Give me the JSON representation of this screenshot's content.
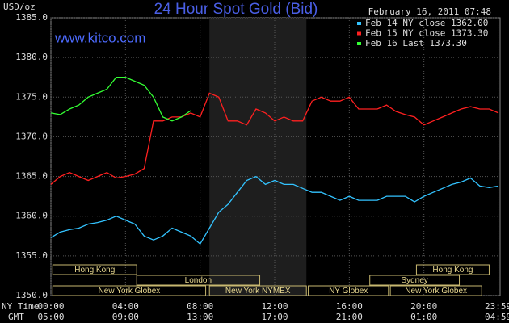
{
  "chart_data": {
    "type": "line",
    "title": "24 Hour Spot Gold (Bid)",
    "subtitle": "www.kitco.com",
    "timestamp": "February 16, 2011 07:48",
    "y_label": "USD/oz",
    "x_row_labels": [
      "NY Time",
      "GMT"
    ],
    "x": [
      0,
      0.5,
      1,
      1.5,
      2,
      2.5,
      3,
      3.5,
      4,
      4.5,
      5,
      5.5,
      6,
      6.5,
      7,
      7.5,
      8,
      8.5,
      9,
      9.5,
      10,
      10.5,
      11,
      11.5,
      12,
      12.5,
      13,
      13.5,
      14,
      14.5,
      15,
      15.5,
      16,
      16.5,
      17,
      17.5,
      18,
      18.5,
      19,
      19.5,
      20,
      20.5,
      21,
      21.5,
      22,
      22.5,
      23,
      23.5,
      24
    ],
    "series": [
      {
        "name": "Feb 14 NY close 1362.00",
        "color": "#33c3ff",
        "values": [
          1357.3,
          1358,
          1358.3,
          1358.5,
          1359,
          1359.2,
          1359.5,
          1360,
          1359.5,
          1359,
          1357.5,
          1357,
          1357.5,
          1358.5,
          1358,
          1357.5,
          1356.5,
          1358.5,
          1360.5,
          1361.5,
          1363,
          1364.5,
          1365,
          1364,
          1364.5,
          1364,
          1364,
          1363.5,
          1363,
          1363,
          1362.5,
          1362,
          1362.5,
          1362,
          1362,
          1362,
          1362.5,
          1362.5,
          1362.5,
          1361.8,
          1362.5,
          1363,
          1363.5,
          1364,
          1364.3,
          1364.8,
          1363.8,
          1363.6,
          1363.8
        ]
      },
      {
        "name": "Feb 15 NY close 1373.30",
        "color": "#ff2020",
        "values": [
          1364,
          1365,
          1365.5,
          1365,
          1364.5,
          1365,
          1365.5,
          1364.8,
          1365,
          1365.3,
          1366,
          1372,
          1372,
          1372.5,
          1372.5,
          1373,
          1372.5,
          1375.5,
          1375,
          1372,
          1372,
          1371.5,
          1373.5,
          1373,
          1372,
          1372.5,
          1372,
          1372,
          1374.5,
          1375,
          1374.5,
          1374.5,
          1375,
          1373.5,
          1373.5,
          1373.5,
          1374,
          1373.2,
          1372.8,
          1372.5,
          1371.5,
          1372,
          1372.5,
          1373,
          1373.5,
          1373.8,
          1373.5,
          1373.5,
          1373
        ]
      },
      {
        "name": "Feb 16 Last 1373.30",
        "color": "#33ff33",
        "values": [
          1373,
          1372.8,
          1373.5,
          1374,
          1375,
          1375.5,
          1376,
          1377.5,
          1377.5,
          1377,
          1376.5,
          1375,
          1372.5,
          1372,
          1372.5,
          1373.3,
          null,
          null,
          null,
          null,
          null,
          null,
          null,
          null,
          null,
          null,
          null,
          null,
          null,
          null,
          null,
          null,
          null,
          null,
          null,
          null,
          null,
          null,
          null,
          null,
          null,
          null,
          null,
          null,
          null,
          null,
          null,
          null,
          null
        ]
      }
    ],
    "xlim": [
      0,
      24
    ],
    "xticks": [
      {
        "value": 0,
        "label": "00:00"
      },
      {
        "value": 4,
        "label": "04:00"
      },
      {
        "value": 8,
        "label": "08:00"
      },
      {
        "value": 12,
        "label": "12:00"
      },
      {
        "value": 16,
        "label": "16:00"
      },
      {
        "value": 20,
        "label": "20:00"
      },
      {
        "value": 23.98,
        "label": "23:59"
      }
    ],
    "gmt_labels": [
      "05:00",
      "09:00",
      "13:00",
      "17:00",
      "21:00",
      "01:00",
      "04:59"
    ],
    "ylim": [
      1350,
      1385
    ],
    "yticks": [
      {
        "value": 1350,
        "label": "1350.0"
      },
      {
        "value": 1355,
        "label": "1355.0"
      },
      {
        "value": 1360,
        "label": "1360.0"
      },
      {
        "value": 1365,
        "label": "1365.0"
      },
      {
        "value": 1370,
        "label": "1370.0"
      },
      {
        "value": 1375,
        "label": "1375.0"
      },
      {
        "value": 1380,
        "label": "1380.0"
      },
      {
        "value": 1385,
        "label": "1385.0"
      }
    ],
    "grid": true,
    "highlight": [
      8.5,
      13.7
    ],
    "sessions": [
      {
        "name": "Hong Kong",
        "row": 0,
        "start": 0.1,
        "end": 4.6
      },
      {
        "name": "Hong Kong",
        "row": 0,
        "start": 19.6,
        "end": 23.5
      },
      {
        "name": "London",
        "row": 1,
        "start": 4.6,
        "end": 11.2
      },
      {
        "name": "Sydney",
        "row": 1,
        "start": 17.1,
        "end": 21.9
      },
      {
        "name": "New York Globex",
        "row": 2,
        "start": 0.1,
        "end": 8.3
      },
      {
        "name": "New York NYMEX",
        "row": 2,
        "start": 8.5,
        "end": 13.7
      },
      {
        "name": "NY Globex",
        "row": 2,
        "start": 13.8,
        "end": 18.1
      },
      {
        "name": "New York Globex",
        "row": 2,
        "start": 18.2,
        "end": 23.1
      }
    ]
  }
}
